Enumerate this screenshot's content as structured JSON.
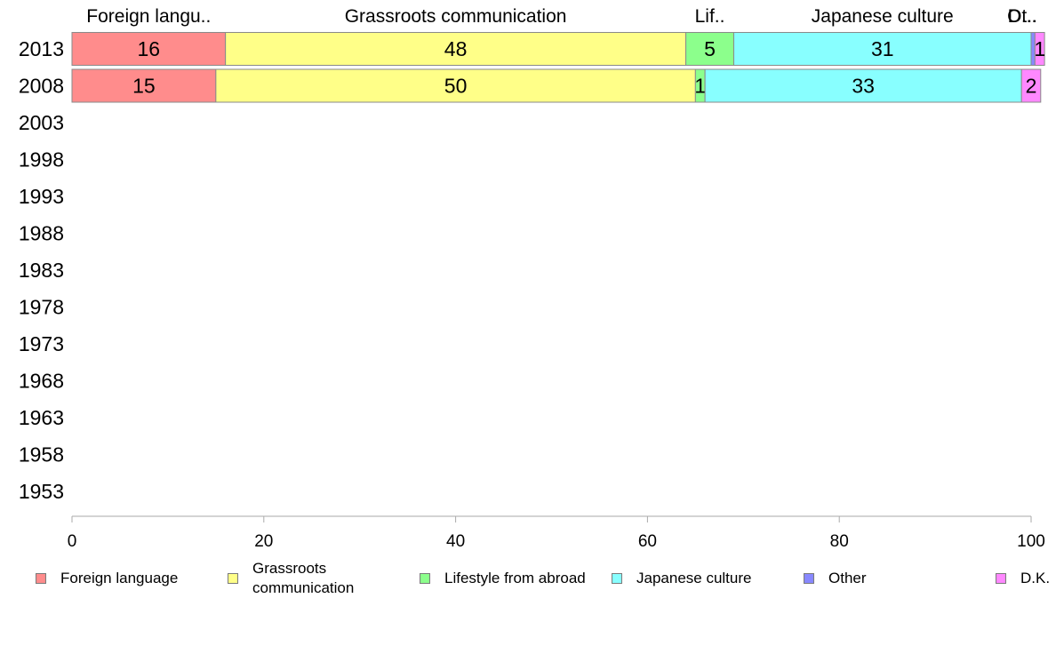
{
  "chart_data": {
    "type": "bar",
    "orientation": "horizontal",
    "stacked": true,
    "title": "",
    "xlabel": "",
    "ylabel": "",
    "xlim": [
      0,
      100
    ],
    "x_ticks": [
      "0",
      "20",
      "40",
      "60",
      "80",
      "100"
    ],
    "categories": [
      "2013",
      "2008",
      "2003",
      "1998",
      "1993",
      "1988",
      "1983",
      "1978",
      "1973",
      "1968",
      "1963",
      "1958",
      "1953"
    ],
    "series": [
      {
        "name": "Foreign language",
        "header": "Foreign langu..",
        "color": "#ff8c8c",
        "values": [
          16,
          15,
          null,
          null,
          null,
          null,
          null,
          null,
          null,
          null,
          null,
          null,
          null
        ]
      },
      {
        "name": "Grassroots communication",
        "header": "Grassroots communication",
        "color": "#ffff88",
        "values": [
          48,
          50,
          null,
          null,
          null,
          null,
          null,
          null,
          null,
          null,
          null,
          null,
          null
        ]
      },
      {
        "name": "Lifestyle from abroad",
        "header": "Lif..",
        "color": "#8cff8c",
        "values": [
          5,
          1,
          null,
          null,
          null,
          null,
          null,
          null,
          null,
          null,
          null,
          null,
          null
        ]
      },
      {
        "name": "Japanese culture",
        "header": "Japanese culture",
        "color": "#88ffff",
        "values": [
          31,
          33,
          null,
          null,
          null,
          null,
          null,
          null,
          null,
          null,
          null,
          null,
          null
        ]
      },
      {
        "name": "Other",
        "header": "Ot..",
        "color": "#8888ff",
        "values": [
          0.4,
          0,
          null,
          null,
          null,
          null,
          null,
          null,
          null,
          null,
          null,
          null,
          null
        ]
      },
      {
        "name": "D.K.",
        "header": "D...",
        "color": "#ff88ff",
        "values": [
          1,
          2,
          null,
          null,
          null,
          null,
          null,
          null,
          null,
          null,
          null,
          null,
          null
        ]
      }
    ],
    "legend_position": "bottom",
    "grid": false
  },
  "legend": {
    "items": [
      {
        "lines": [
          "Foreign language"
        ],
        "color": "#ff8c8c"
      },
      {
        "lines": [
          "Grassroots",
          "communication"
        ],
        "color": "#ffff88"
      },
      {
        "lines": [
          "Lifestyle from abroad"
        ],
        "color": "#8cff8c"
      },
      {
        "lines": [
          "Japanese culture"
        ],
        "color": "#88ffff"
      },
      {
        "lines": [
          "Other"
        ],
        "color": "#8888ff"
      },
      {
        "lines": [
          "D.K."
        ],
        "color": "#ff88ff"
      }
    ]
  }
}
